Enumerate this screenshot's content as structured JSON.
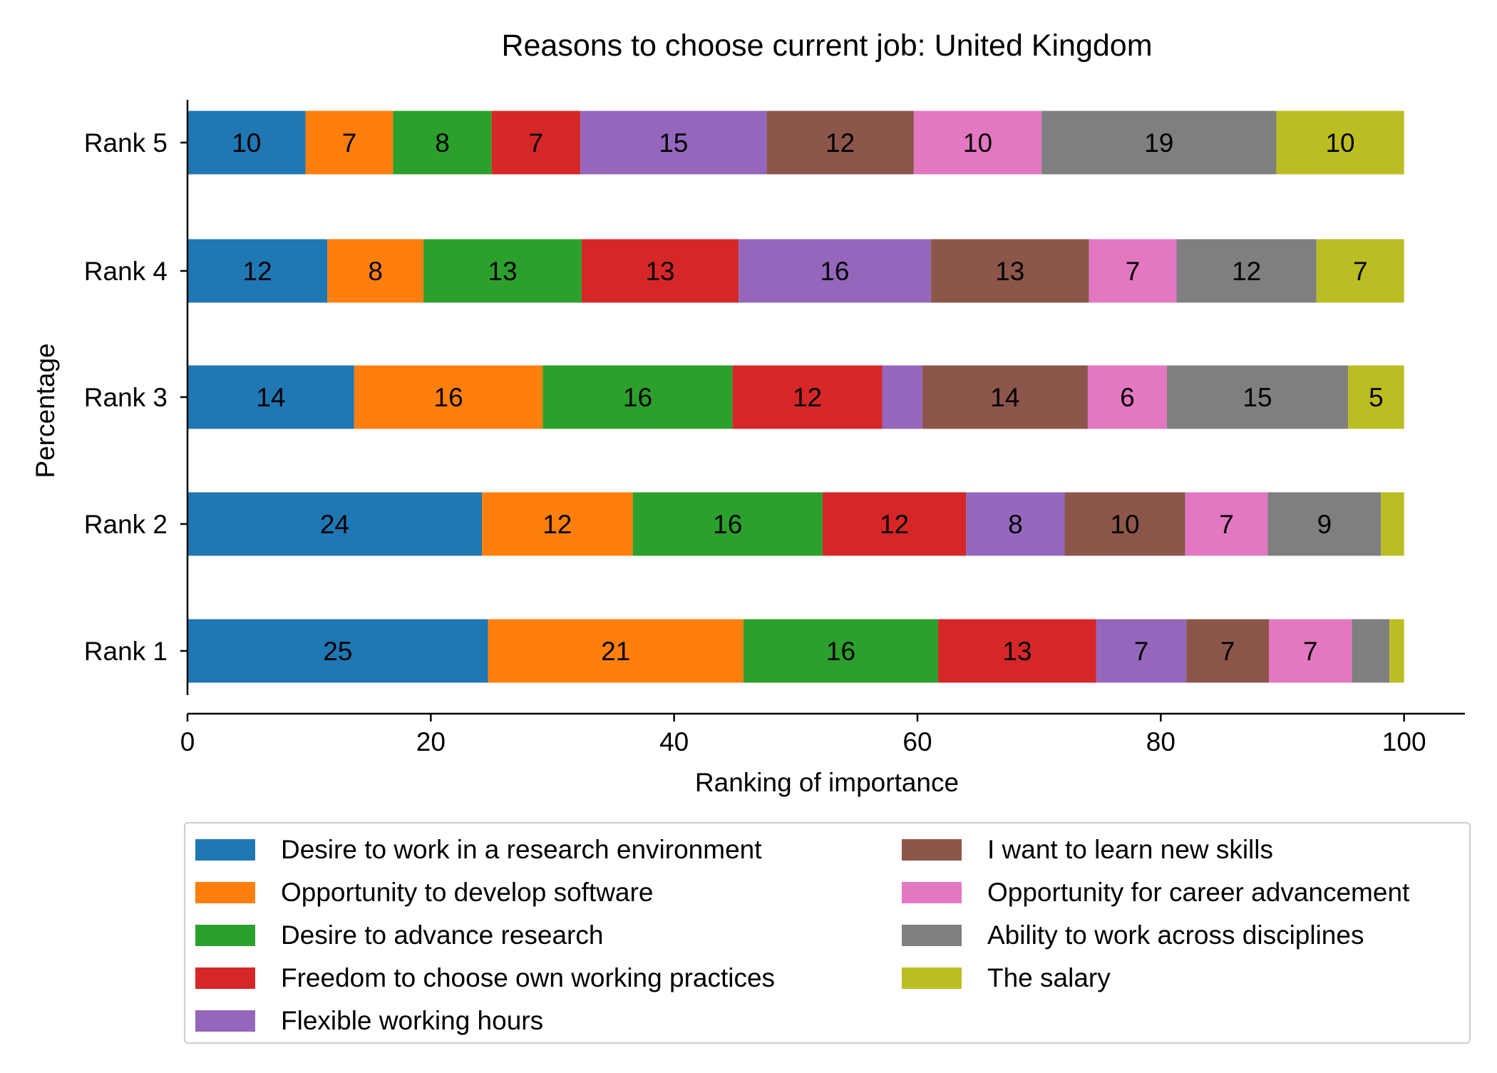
{
  "chart_data": {
    "type": "bar",
    "orientation": "horizontal",
    "stacked": true,
    "title": "Reasons to choose current job: United Kingdom",
    "xlabel": "Ranking of importance",
    "ylabel": "Percentage",
    "xlim": [
      0,
      105
    ],
    "xticks": [
      0,
      20,
      40,
      60,
      80,
      100
    ],
    "grid": false,
    "legend_position": "bottom",
    "categories": [
      "Rank 1",
      "Rank 2",
      "Rank 3",
      "Rank 4",
      "Rank 5"
    ],
    "series": [
      {
        "name": "Desire to work in a research environment",
        "color": "#1f77b4",
        "values": [
          24.7,
          24.2,
          13.7,
          11.5,
          9.7
        ],
        "labels": [
          "25",
          "24",
          "14",
          "12",
          "10"
        ]
      },
      {
        "name": "Opportunity to develop software",
        "color": "#ff7f0e",
        "values": [
          21.0,
          12.4,
          15.5,
          7.9,
          7.2
        ],
        "labels": [
          "21",
          "12",
          "16",
          "8",
          "7"
        ]
      },
      {
        "name": "Desire to advance research",
        "color": "#2ca02c",
        "values": [
          16.0,
          15.6,
          15.6,
          13.0,
          8.1
        ],
        "labels": [
          "16",
          "16",
          "16",
          "13",
          "8"
        ]
      },
      {
        "name": "Freedom to choose own working practices",
        "color": "#d62728",
        "values": [
          13.0,
          11.8,
          12.3,
          12.9,
          7.3
        ],
        "labels": [
          "13",
          "12",
          "12",
          "13",
          "7"
        ]
      },
      {
        "name": "Flexible working hours",
        "color": "#9467bd",
        "values": [
          7.4,
          8.1,
          3.3,
          15.8,
          15.3
        ],
        "labels": [
          "7",
          "8",
          "",
          "16",
          "15"
        ]
      },
      {
        "name": "I want to learn new skills",
        "color": "#8c564b",
        "values": [
          6.8,
          9.9,
          13.6,
          13.0,
          12.1
        ],
        "labels": [
          "7",
          "10",
          "14",
          "13",
          "12"
        ]
      },
      {
        "name": "Opportunity for career advancement",
        "color": "#e377c2",
        "values": [
          6.8,
          6.8,
          6.5,
          7.2,
          10.5
        ],
        "labels": [
          "7",
          "7",
          "6",
          "7",
          "10"
        ]
      },
      {
        "name": "Ability to work across disciplines",
        "color": "#7f7f7f",
        "values": [
          3.1,
          9.3,
          14.9,
          11.5,
          19.3
        ],
        "labels": [
          "",
          "9",
          "15",
          "12",
          "19"
        ]
      },
      {
        "name": "The salary",
        "color": "#bcbd22",
        "values": [
          1.2,
          1.9,
          4.6,
          7.2,
          10.5
        ],
        "labels": [
          "",
          "",
          "5",
          "7",
          "10"
        ]
      }
    ]
  }
}
